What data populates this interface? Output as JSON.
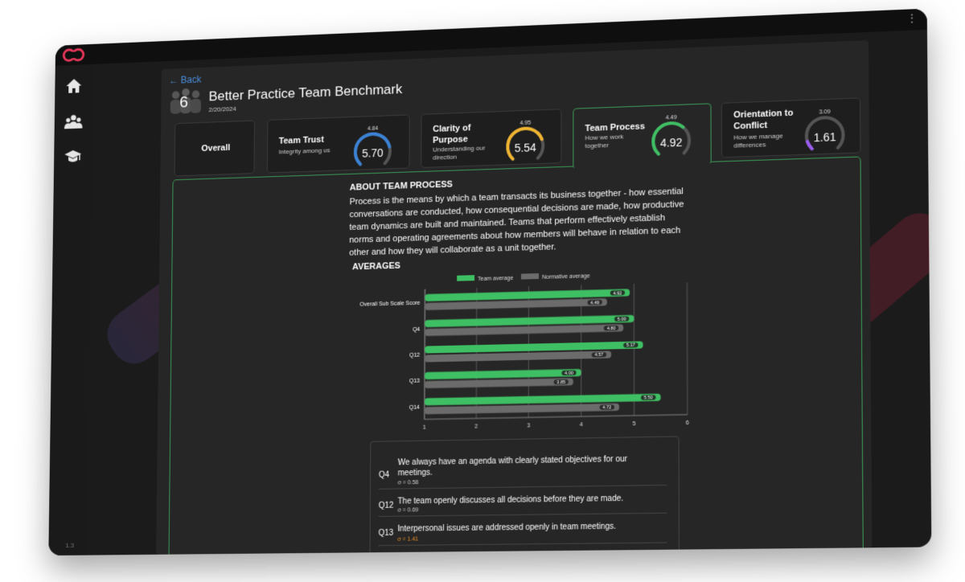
{
  "app": {
    "version": "1.3"
  },
  "nav": [
    {
      "name": "home-icon"
    },
    {
      "name": "team-icon"
    },
    {
      "name": "graduation-cap-icon"
    }
  ],
  "header": {
    "back_label": "← Back",
    "team_size": "6",
    "title": "Better Practice Team Benchmark",
    "date": "2/20/2024"
  },
  "tabs": [
    {
      "label": "Overall",
      "active": false
    },
    {
      "label": "Team Trust",
      "subtitle": "Integrity among us",
      "score": 5.7,
      "score_label": "5.70",
      "norm": 4.84,
      "norm_label": "4.84",
      "color": "#3b82d6",
      "active": false
    },
    {
      "label": "Clarity of Purpose",
      "subtitle": "Understanding our direction",
      "score": 5.54,
      "score_label": "5.54",
      "norm": 4.95,
      "norm_label": "4.95",
      "color": "#f0b431",
      "active": false
    },
    {
      "label": "Team Process",
      "subtitle": "How we work together",
      "score": 4.92,
      "score_label": "4.92",
      "norm": 4.49,
      "norm_label": "4.49",
      "color": "#3fbf63",
      "active": true
    },
    {
      "label": "Orientation to Conflict",
      "subtitle": "How we manage differences",
      "score": 1.61,
      "score_label": "1.61",
      "norm": 3.09,
      "norm_label": "3.09",
      "color": "#9b5cf0",
      "active": false
    }
  ],
  "about": {
    "heading": "ABOUT TEAM PROCESS",
    "text": "Process is the means by which a team transacts its business together - how essential conversations are conducted, how consequential decisions are made, how productive team dynamics are built and maintained. Teams that perform effectively establish norms and operating agreements about how members will behave in relation to each other and how they will collaborate as a unit together."
  },
  "averages_heading": "AVERAGES",
  "chart_data": {
    "type": "bar",
    "orientation": "horizontal",
    "categories": [
      "Overall Sub Scale Score",
      "Q4",
      "Q12",
      "Q13",
      "Q14"
    ],
    "series": [
      {
        "name": "Team average",
        "color": "#3fbf63",
        "values": [
          4.92,
          5.0,
          5.17,
          4.0,
          5.5
        ],
        "labels": [
          "4.92",
          "5.00",
          "5.17",
          "4.00",
          "5.50"
        ]
      },
      {
        "name": "Normative average",
        "color": "#6b6b6b",
        "values": [
          4.49,
          4.8,
          4.57,
          3.85,
          4.72
        ],
        "labels": [
          "4.49",
          "4.80",
          "4.57",
          "3.85",
          "4.72"
        ]
      }
    ],
    "x_ticks": [
      "1",
      "2",
      "3",
      "4",
      "5",
      "6"
    ],
    "xlim": [
      1,
      6
    ],
    "legend": "top",
    "grid": true
  },
  "questions": [
    {
      "id": "Q4",
      "text": "We always have an agenda with clearly stated objectives for our meetings.",
      "sigma": "σ = 0.58",
      "sigma_color": "#cccccc"
    },
    {
      "id": "Q12",
      "text": "The team openly discusses all decisions before they are made.",
      "sigma": "σ = 0.69",
      "sigma_color": "#cccccc"
    },
    {
      "id": "Q13",
      "text": "Interpersonal issues are addressed openly in team meetings.",
      "sigma": "σ = 1.41",
      "sigma_color": "#e8902a"
    }
  ]
}
